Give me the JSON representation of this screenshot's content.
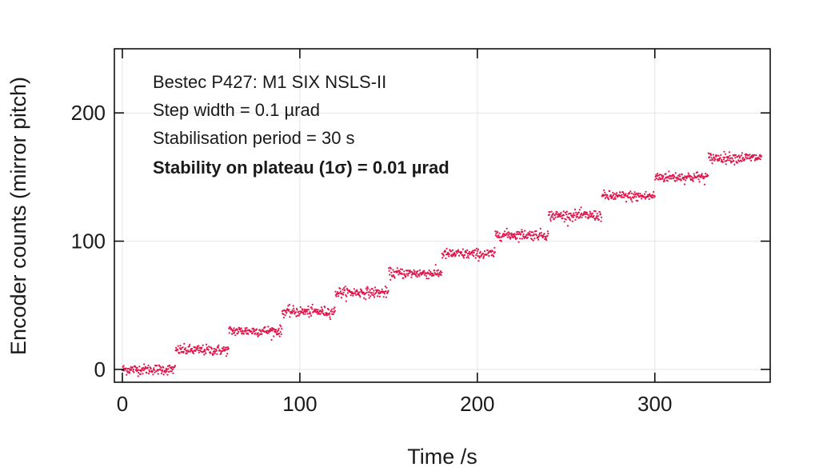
{
  "chart_data": {
    "type": "scatter",
    "xlabel": "Time /s",
    "ylabel": "Encoder counts (mirror pitch)",
    "xlim": [
      -4.5,
      365
    ],
    "ylim": [
      -10,
      250
    ],
    "xticks": [
      0,
      100,
      200,
      300
    ],
    "yticks": [
      0,
      100,
      200
    ],
    "grid": true,
    "annotations": [
      "Bestec P427: M1 SIX NSLS-II",
      "Step width = 0.1 µrad",
      "Stabilisation period = 30 s",
      "Stability on plateau (1σ) = 0.01 µrad"
    ],
    "series": [
      {
        "name": "encoder",
        "color": "#e0164a",
        "step_period_s": 30,
        "plateau_levels": [
          0,
          15,
          30,
          45,
          60,
          75,
          90,
          105,
          120,
          135,
          150,
          165
        ],
        "plateau_start_s": [
          0,
          30,
          60,
          90,
          120,
          150,
          180,
          210,
          240,
          270,
          300,
          330
        ],
        "x_range": [
          0,
          360
        ],
        "noise_counts_sigma": 2
      }
    ]
  }
}
